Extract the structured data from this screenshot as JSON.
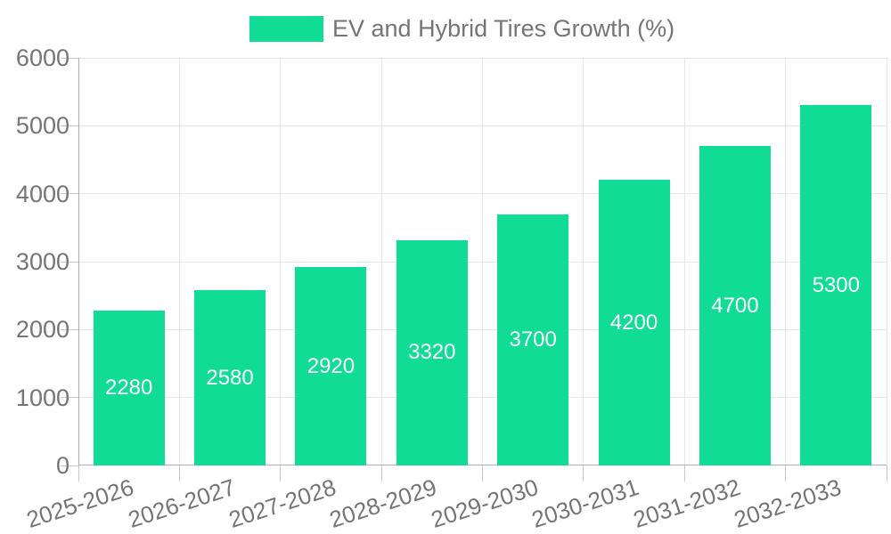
{
  "legend": {
    "label": "EV and Hybrid Tires Growth (%)"
  },
  "chart_data": {
    "type": "bar",
    "title": "",
    "xlabel": "",
    "ylabel": "",
    "legend_entries": [
      "EV and Hybrid Tires Growth (%)"
    ],
    "legend_position": "top-center",
    "categories": [
      "2025-2026",
      "2026-2027",
      "2027-2028",
      "2028-2029",
      "2029-2030",
      "2030-2031",
      "2031-2032",
      "2032-2033"
    ],
    "values": [
      2280,
      2580,
      2920,
      3320,
      3700,
      4200,
      4700,
      5300
    ],
    "bar_labels": [
      "2280",
      "2580",
      "2920",
      "3320",
      "3700",
      "4200",
      "4700",
      "5300"
    ],
    "ylim": [
      0,
      6000
    ],
    "ytick_step": 1000,
    "ytick_labels": [
      "0",
      "1000",
      "2000",
      "3000",
      "4000",
      "5000",
      "6000"
    ],
    "grid": "on",
    "x_label_rotation_deg": -18,
    "colors": {
      "bar": "#10dc96",
      "bar_label": "#ffffff",
      "grid": "#e6e6e6",
      "tick": "#c9c9c9",
      "axis": "#b0b0b0",
      "text": "#757575",
      "background": "#ffffff"
    }
  }
}
